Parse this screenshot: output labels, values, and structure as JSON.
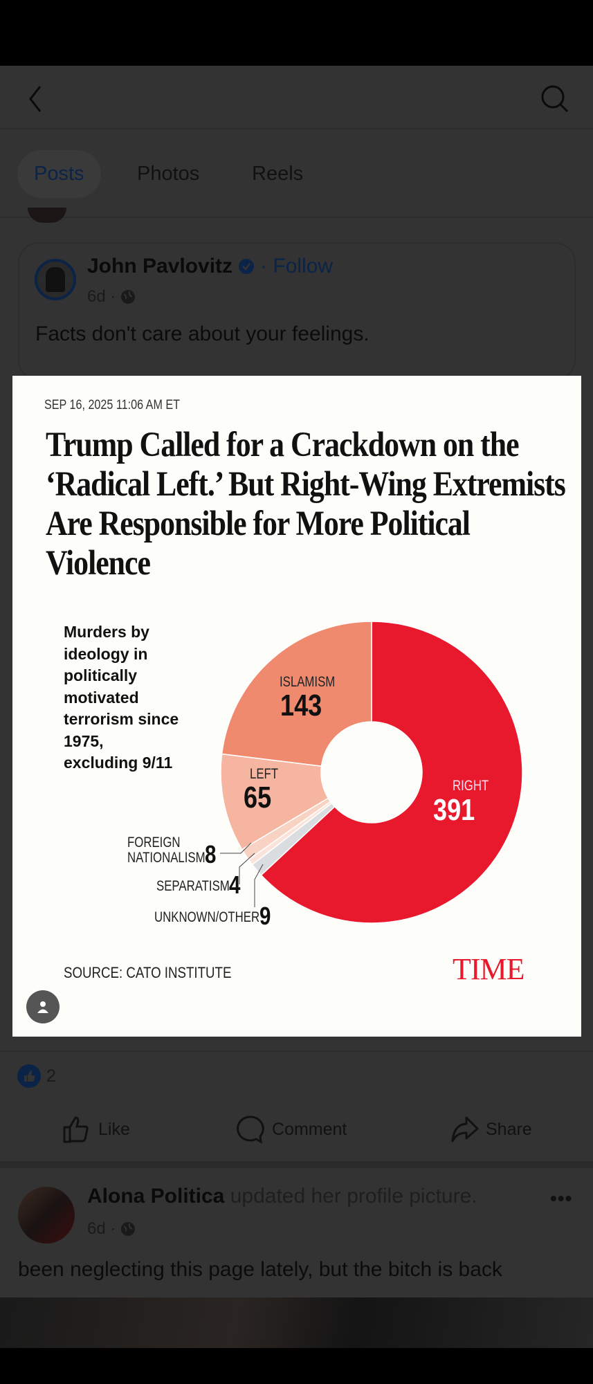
{
  "header": {
    "back_icon": "chevron-left-icon",
    "search_icon": "search-icon"
  },
  "tabs": [
    {
      "label": "Posts",
      "active": true
    },
    {
      "label": "Photos"
    },
    {
      "label": "Reels"
    }
  ],
  "post1": {
    "author": "John Pavlovitz",
    "verified_icon": "verified-badge-icon",
    "follow": "· Follow",
    "time": "6d ·",
    "text": "Facts don't care about your feelings.",
    "image": {
      "dateline": "SEP 16, 2025 11:06 AM ET",
      "headline": "Trump Called for a Crackdown on the ‘Radical Left.’ But Right-Wing Extremists Are Responsible for More Political Violence",
      "source": "SOURCE: CATO INSTITUTE",
      "brand": "TIME"
    },
    "reaction_count": "2",
    "actions": {
      "like": "Like",
      "comment": "Comment",
      "share": "Share"
    }
  },
  "post2": {
    "author": "Alona Politica",
    "action": "updated her profile picture.",
    "time": "6d ·",
    "text": "been neglecting this page lately, but the bitch is back"
  },
  "chart_data": {
    "type": "pie",
    "title": "Murders by ideology in politically motivated terrorism since 1975, excluding 9/11",
    "slices": [
      {
        "label": "RIGHT",
        "value": 391,
        "color": "#e8192c"
      },
      {
        "label": "UNKNOWN/OTHER",
        "value": 9,
        "color": "#d9dde0"
      },
      {
        "label": "SEPARATISM",
        "value": 4,
        "color": "#fbe3da"
      },
      {
        "label": "FOREIGN NATIONALISM",
        "value": 8,
        "color": "#f8d3c4"
      },
      {
        "label": "LEFT",
        "value": 65,
        "color": "#f6b5a0"
      },
      {
        "label": "ISLAMISM",
        "value": 143,
        "color": "#ef8a6e"
      }
    ],
    "foreign_label_line1": "FOREIGN",
    "foreign_label_line2": "NATIONALISM"
  }
}
